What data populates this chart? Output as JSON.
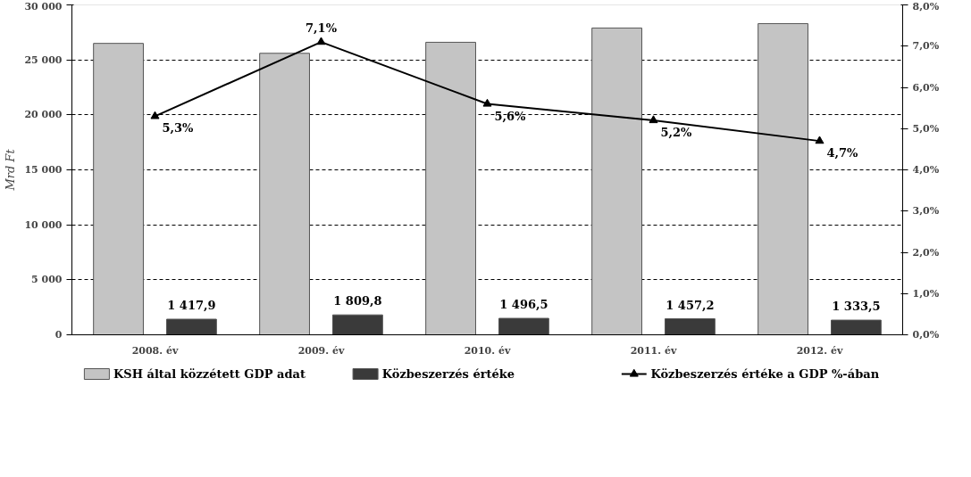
{
  "chart_data": {
    "type": "bar",
    "categories": [
      "2008. év",
      "2009. év",
      "2010. év",
      "2011. év",
      "2012. év"
    ],
    "ylabel": "Mrd Ft",
    "ylim": [
      0,
      30000
    ],
    "yticks": [
      {
        "value": 0,
        "label": "0"
      },
      {
        "value": 5000,
        "label": "5 000"
      },
      {
        "value": 10000,
        "label": "10 000"
      },
      {
        "value": 15000,
        "label": "15 000"
      },
      {
        "value": 20000,
        "label": "20 000"
      },
      {
        "value": 25000,
        "label": "25 000"
      },
      {
        "value": 30000,
        "label": "30 000"
      }
    ],
    "y2lim": [
      0,
      8
    ],
    "y2ticks": [
      {
        "value": 0,
        "label": "0,0%"
      },
      {
        "value": 1,
        "label": "1,0%"
      },
      {
        "value": 2,
        "label": "2,0%"
      },
      {
        "value": 3,
        "label": "3,0%"
      },
      {
        "value": 4,
        "label": "4,0%"
      },
      {
        "value": 5,
        "label": "5,0%"
      },
      {
        "value": 6,
        "label": "6,0%"
      },
      {
        "value": 7,
        "label": "7,0%"
      },
      {
        "value": 8,
        "label": "8,0%"
      }
    ],
    "grid": "y",
    "legend": "bottom",
    "series": [
      {
        "name": "KSH által közzétett GDP adat",
        "color": "#c4c4c4",
        "values": [
          26500,
          25600,
          26600,
          27900,
          28300
        ]
      },
      {
        "name": "Közbeszerzés értéke",
        "color": "#3a3a3a",
        "values": [
          1417.9,
          1809.8,
          1496.5,
          1457.2,
          1333.5
        ],
        "value_labels": [
          "1 417,9",
          "1 809,8",
          "1 496,5",
          "1 457,2",
          "1 333,5"
        ]
      },
      {
        "name": "Közbeszerzés értéke a GDP %-ában",
        "type": "line",
        "axis": "y2",
        "color": "#000000",
        "marker": "triangle",
        "values": [
          5.3,
          7.1,
          5.6,
          5.2,
          4.7
        ],
        "value_labels": [
          "5,3%",
          "7,1%",
          "5,6%",
          "5,2%",
          "4,7%"
        ]
      }
    ]
  }
}
